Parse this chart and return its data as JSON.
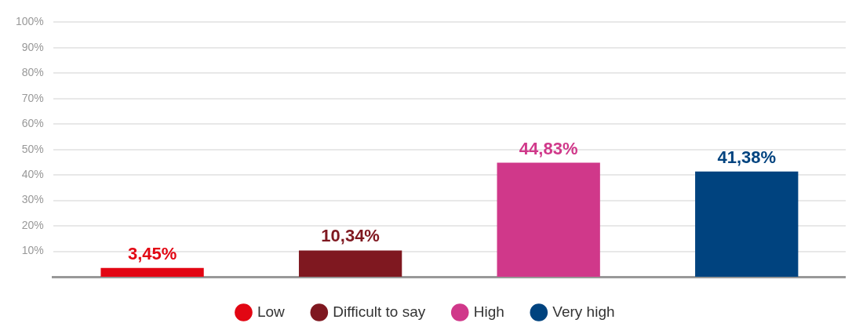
{
  "chart_data": {
    "type": "bar",
    "categories": [
      null,
      null,
      null,
      null
    ],
    "series": [
      {
        "name": "Low",
        "color": "#e20613",
        "values": [
          3.45,
          null,
          null,
          null
        ],
        "value_labels": [
          "3,45%",
          null,
          null,
          null
        ]
      },
      {
        "name": "Difficult to say",
        "color": "#7f1820",
        "values": [
          null,
          10.34,
          null,
          null
        ],
        "value_labels": [
          null,
          "10,34%",
          null,
          null
        ]
      },
      {
        "name": "High",
        "color": "#d0388a",
        "values": [
          null,
          null,
          44.83,
          null
        ],
        "value_labels": [
          null,
          null,
          "44,83%",
          null
        ]
      },
      {
        "name": "Very high",
        "color": "#00437f",
        "values": [
          null,
          null,
          null,
          41.38
        ],
        "value_labels": [
          null,
          null,
          null,
          "41,38%"
        ]
      }
    ],
    "ylim": [
      0,
      100
    ],
    "yticks": [
      {
        "value": 10,
        "label": "10%"
      },
      {
        "value": 20,
        "label": "20%"
      },
      {
        "value": 30,
        "label": "30%"
      },
      {
        "value": 40,
        "label": "40%"
      },
      {
        "value": 50,
        "label": "50%"
      },
      {
        "value": 60,
        "label": "60%"
      },
      {
        "value": 70,
        "label": "70%"
      },
      {
        "value": 80,
        "label": "80%"
      },
      {
        "value": 90,
        "label": "90%"
      },
      {
        "value": 100,
        "label": "100%"
      }
    ],
    "grid": "y",
    "legend": "bottom",
    "tick_labels": "y"
  }
}
